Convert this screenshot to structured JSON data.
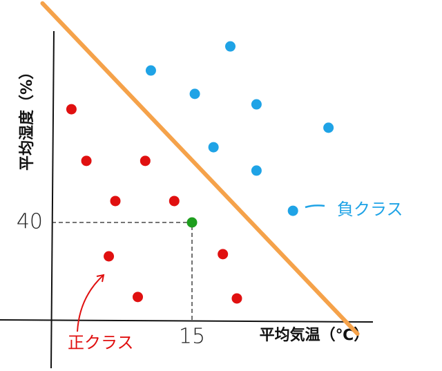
{
  "chart_data": {
    "type": "scatter",
    "x_label": "平均気温（℃）",
    "y_label": "平均湿度（%）",
    "xlim": [
      0,
      35
    ],
    "ylim": [
      0,
      130
    ],
    "xticks": [
      15
    ],
    "yticks": [
      40
    ],
    "series": [
      {
        "name": "正クラス",
        "color": "#e01010",
        "x": [
          2.1,
          3.7,
          10.0,
          6.8,
          13.1,
          6.1,
          18.3,
          9.2,
          19.8
        ],
        "values": [
          86.5,
          65.3,
          65.3,
          48.8,
          48.8,
          26.1,
          27.0,
          9.4,
          8.8
        ]
      },
      {
        "name": "負クラス",
        "color": "#1fa3e6",
        "x": [
          19.1,
          10.6,
          15.3,
          21.9,
          29.6,
          17.3,
          21.9,
          25.8
        ],
        "values": [
          112.3,
          102.4,
          92.8,
          88.5,
          78.9,
          70.9,
          61.3,
          44.8
        ]
      },
      {
        "color": "#1e9e1e",
        "x": [
          15
        ],
        "values": [
          40
        ]
      }
    ],
    "line": {
      "color": "#f5a24a",
      "x": [
        -1.0,
        32.7
      ],
      "y": [
        130,
        -5.7
      ]
    }
  }
}
